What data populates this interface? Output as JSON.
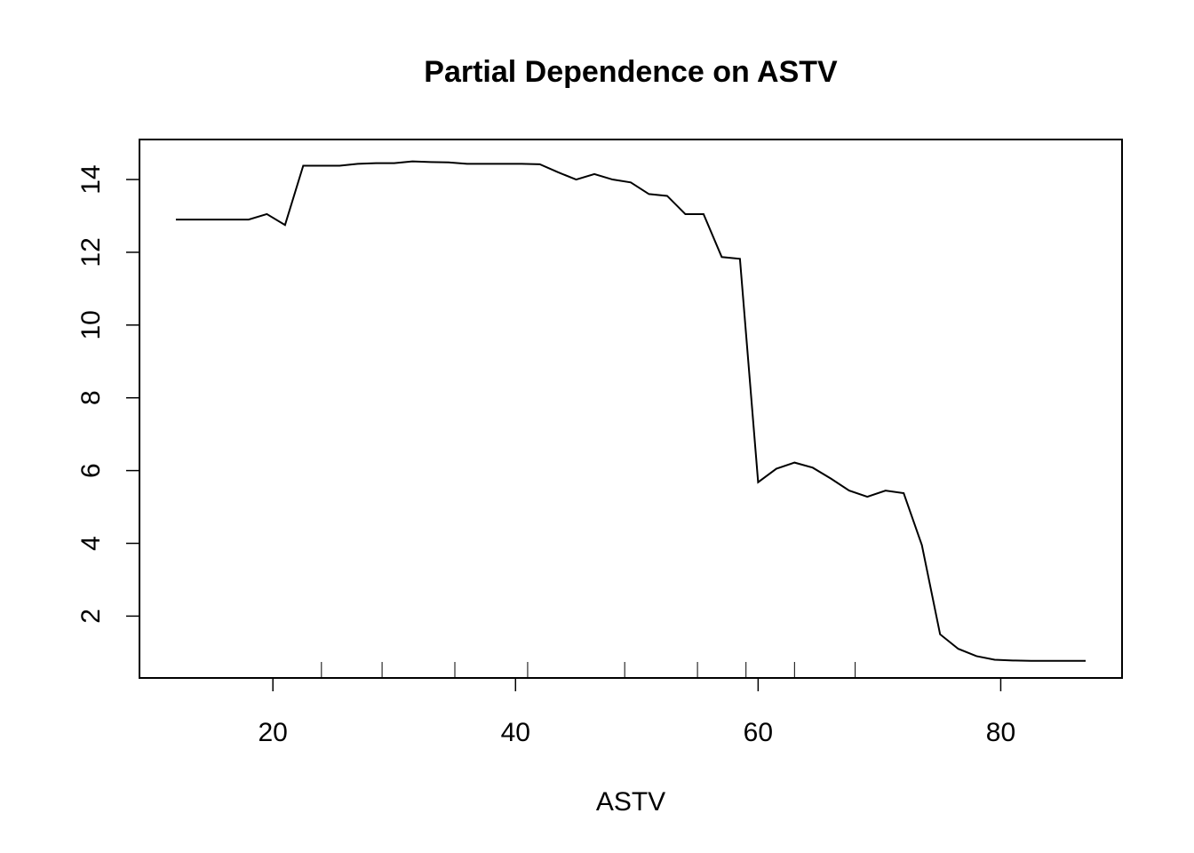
{
  "chart_data": {
    "type": "line",
    "title": "Partial Dependence on ASTV",
    "xlabel": "ASTV",
    "ylabel": "",
    "xlim": [
      9,
      90
    ],
    "ylim": [
      0.3,
      15.1
    ],
    "x_ticks": [
      20,
      40,
      60,
      80
    ],
    "x_tick_labels": [
      "20",
      "40",
      "60",
      "80"
    ],
    "y_ticks": [
      2,
      4,
      6,
      8,
      10,
      12,
      14
    ],
    "y_tick_labels": [
      "2",
      "4",
      "6",
      "8",
      "10",
      "12",
      "14"
    ],
    "grid": false,
    "legend": "none",
    "rug_x": [
      24,
      29,
      35,
      41,
      49,
      55,
      59,
      63,
      68
    ],
    "series": [
      {
        "x": [
          12,
          13.5,
          15,
          16.5,
          18,
          19.5,
          21,
          22.5,
          24,
          25.5,
          27,
          28.5,
          30,
          31.5,
          33,
          34.5,
          36,
          37.5,
          39,
          40.5,
          42,
          43.5,
          45,
          46.5,
          48,
          49.5,
          51,
          52.5,
          54,
          55.5,
          57,
          58.5,
          60,
          61.5,
          63,
          64.5,
          66,
          67.5,
          69,
          70.5,
          72,
          73.5,
          75,
          76.5,
          78,
          79.5,
          81,
          82.5,
          84,
          85.5,
          87
        ],
        "values": [
          12.9,
          12.9,
          12.9,
          12.9,
          12.9,
          13.05,
          12.75,
          14.38,
          14.38,
          14.38,
          14.43,
          14.45,
          14.45,
          14.5,
          14.48,
          14.47,
          14.43,
          14.43,
          14.43,
          14.43,
          14.42,
          14.2,
          14.0,
          14.15,
          14.0,
          13.92,
          13.6,
          13.55,
          13.05,
          13.05,
          11.87,
          11.82,
          5.68,
          6.05,
          6.22,
          6.08,
          5.78,
          5.45,
          5.28,
          5.45,
          5.38,
          3.95,
          1.5,
          1.1,
          0.9,
          0.8,
          0.78,
          0.77,
          0.77,
          0.77,
          0.77
        ]
      }
    ]
  }
}
